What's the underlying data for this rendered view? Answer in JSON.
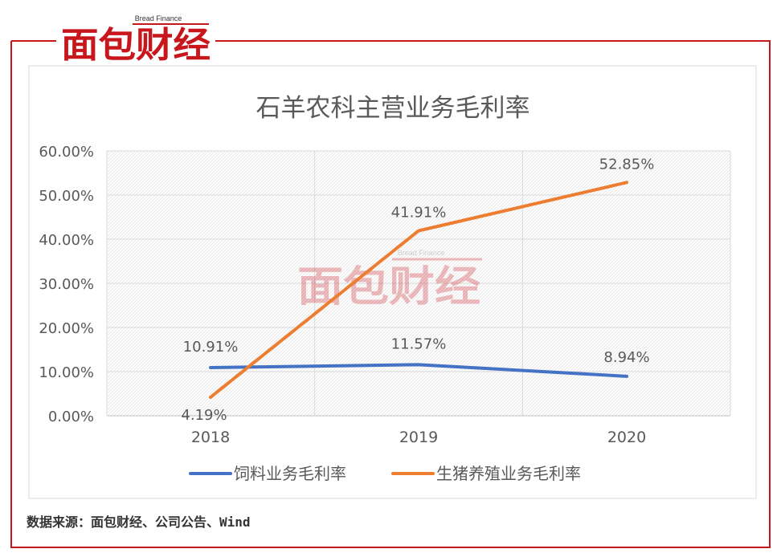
{
  "brand": {
    "name": "面包财经",
    "english": "Bread Finance"
  },
  "source_note": "数据来源：面包财经、公司公告、Wind",
  "colors": {
    "brand_red": "#c8161d",
    "feed_series": "#4472c4",
    "pig_series": "#ed7d31",
    "text_gray": "#595959",
    "grid_gray": "#d9d9d9"
  },
  "chart_data": {
    "type": "line",
    "title": "石羊农科主营业务毛利率",
    "categories": [
      "2018",
      "2019",
      "2020"
    ],
    "series": [
      {
        "name": "饲料业务毛利率",
        "values": [
          10.91,
          11.57,
          8.94
        ],
        "labels": [
          "10.91%",
          "11.57%",
          "8.94%"
        ]
      },
      {
        "name": "生猪养殖业务毛利率",
        "values": [
          4.19,
          41.91,
          52.85
        ],
        "labels": [
          "4.19%",
          "41.91%",
          "52.85%"
        ]
      }
    ],
    "ylim": [
      0,
      60
    ],
    "yticks": [
      "0.00%",
      "10.00%",
      "20.00%",
      "30.00%",
      "40.00%",
      "50.00%",
      "60.00%"
    ],
    "xlabel": "",
    "ylabel": "",
    "grid": true,
    "legend": "bottom"
  }
}
